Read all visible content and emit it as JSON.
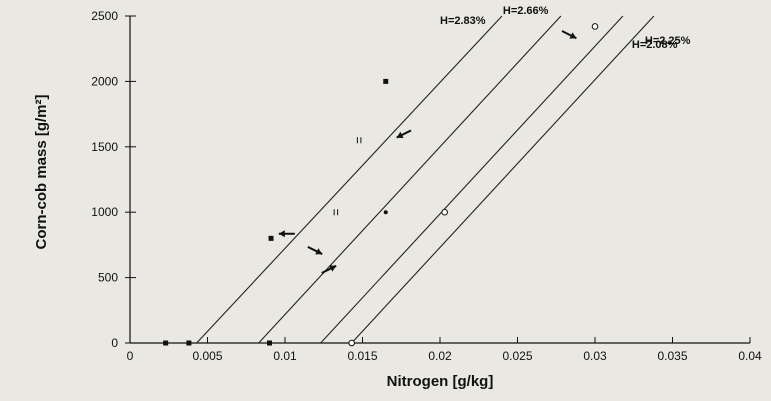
{
  "chart_data": {
    "type": "line",
    "xlabel": "Nitrogen [g/kg]",
    "ylabel": "Corn-cob mass [g/m²]",
    "xlim": [
      0,
      0.04
    ],
    "ylim": [
      0,
      2500
    ],
    "x_ticks": [
      0,
      0.005,
      0.01,
      0.015,
      0.02,
      0.025,
      0.03,
      0.035,
      0.04
    ],
    "x_tick_labels": [
      "0",
      "0.005",
      "0.01",
      "0.015",
      "0.02",
      "0.025",
      "0.03",
      "0.035",
      "0.04"
    ],
    "y_ticks": [
      0,
      500,
      1000,
      1500,
      2000,
      2500
    ],
    "y_tick_labels": [
      "0",
      "500",
      "1000",
      "1500",
      "2000",
      "2500"
    ],
    "grid": false,
    "series": [
      {
        "name": "H=2.83%",
        "x": [
          0.0043,
          0.024
        ],
        "y": [
          0,
          2500
        ]
      },
      {
        "name": "H=2.66%",
        "x": [
          0.0083,
          0.0278
        ],
        "y": [
          0,
          2500
        ]
      },
      {
        "name": "H=2.25%",
        "x": [
          0.0123,
          0.0318
        ],
        "y": [
          0,
          2500
        ]
      },
      {
        "name": "H=2.08%",
        "x": [
          0.0143,
          0.0338
        ],
        "y": [
          0,
          2500
        ]
      }
    ],
    "points": [
      {
        "x": 0.0023,
        "y": 0,
        "marker": "square"
      },
      {
        "x": 0.0038,
        "y": 0,
        "marker": "square"
      },
      {
        "x": 0.009,
        "y": 0,
        "marker": "square"
      },
      {
        "x": 0.0143,
        "y": 0,
        "marker": "circle-open"
      },
      {
        "x": 0.0091,
        "y": 800,
        "marker": "square"
      },
      {
        "x": 0.0133,
        "y": 1000,
        "marker": "tick"
      },
      {
        "x": 0.0165,
        "y": 1000,
        "marker": "dot"
      },
      {
        "x": 0.0203,
        "y": 1000,
        "marker": "circle-open"
      },
      {
        "x": 0.0165,
        "y": 2000,
        "marker": "square"
      },
      {
        "x": 0.0148,
        "y": 1550,
        "marker": "tick"
      },
      {
        "x": 0.03,
        "y": 2420,
        "marker": "circle-open"
      }
    ],
    "arrows": [
      {
        "x": 0.0096,
        "y": 835,
        "dir": "left"
      },
      {
        "x": 0.0172,
        "y": 1570,
        "dir": "down-left"
      },
      {
        "x": 0.0124,
        "y": 680,
        "dir": "down-right"
      },
      {
        "x": 0.0133,
        "y": 590,
        "dir": "up-right"
      },
      {
        "x": 0.0288,
        "y": 2330,
        "dir": "down-right"
      }
    ]
  }
}
